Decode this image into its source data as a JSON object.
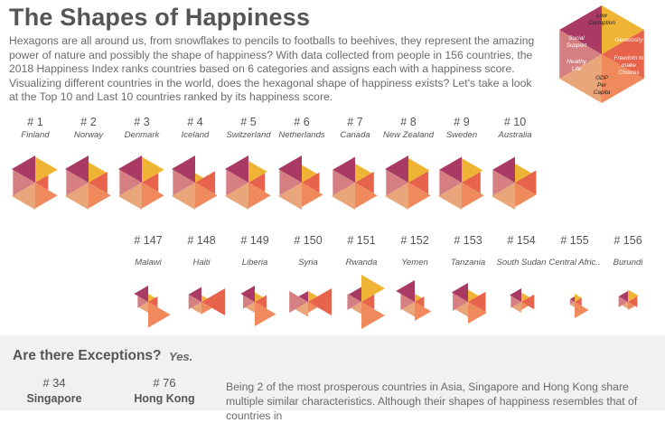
{
  "title": "The Shapes of Happiness",
  "intro": "Hexagons are all around us, from snowflakes to pencils to footballs to beehives, they represent the amazing power of nature and possibly the shape of happiness? With data collected from people in 156 countries, the 2018 Happiness Index ranks countries based on 6 categories and assigns each with a happiness score. Visualizing different countries in the world, does the hexagonal shape of happiness exists? Let's take a look at the Top 10 and Last 10 countries ranked by its happiness score.",
  "legend": {
    "segments": [
      {
        "key": "corruption",
        "label": "Low Corruption",
        "color": "#f0b434"
      },
      {
        "key": "generosity",
        "label": "Generosity",
        "color": "#e7634b"
      },
      {
        "key": "freedom",
        "label": "Freedom to make Choices",
        "color": "#f08a5c"
      },
      {
        "key": "gdp",
        "label": "GDP Per Capita",
        "color": "#e9a67a"
      },
      {
        "key": "health",
        "label": "Healthy Life",
        "color": "#d57f83"
      },
      {
        "key": "social",
        "label": "Social Support",
        "color": "#a93a64"
      }
    ]
  },
  "chart_data": {
    "type": "radial-hexagon",
    "categories": [
      "Low Corruption",
      "Generosity",
      "Freedom to make Choices",
      "GDP Per Capita",
      "Healthy Life",
      "Social Support"
    ],
    "top10": [
      {
        "rank": "# 1",
        "country": "Finland",
        "values": [
          0.95,
          0.55,
          0.95,
          1.0,
          0.95,
          1.0
        ]
      },
      {
        "rank": "# 2",
        "country": "Norway",
        "values": [
          0.75,
          0.8,
          0.95,
          1.0,
          0.95,
          1.0
        ]
      },
      {
        "rank": "# 3",
        "country": "Denmark",
        "values": [
          0.95,
          0.7,
          0.95,
          1.0,
          0.95,
          1.0
        ]
      },
      {
        "rank": "# 4",
        "country": "Iceland",
        "values": [
          0.35,
          0.85,
          0.95,
          1.0,
          0.95,
          1.0
        ]
      },
      {
        "rank": "# 5",
        "country": "Switzerland",
        "values": [
          0.8,
          0.7,
          0.95,
          1.0,
          0.95,
          1.0
        ]
      },
      {
        "rank": "# 6",
        "country": "Netherlands",
        "values": [
          0.65,
          0.75,
          0.9,
          1.0,
          0.95,
          1.0
        ]
      },
      {
        "rank": "# 7",
        "country": "Canada",
        "values": [
          0.7,
          0.8,
          0.95,
          1.0,
          0.95,
          0.95
        ]
      },
      {
        "rank": "# 8",
        "country": "New Zealand",
        "values": [
          0.9,
          0.85,
          0.95,
          1.0,
          0.95,
          1.0
        ]
      },
      {
        "rank": "# 9",
        "country": "Sweden",
        "values": [
          0.9,
          0.8,
          0.95,
          1.0,
          0.95,
          0.95
        ]
      },
      {
        "rank": "# 10",
        "country": "Australia",
        "values": [
          0.7,
          0.9,
          0.9,
          1.0,
          0.95,
          0.95
        ]
      }
    ],
    "last10": [
      {
        "rank": "# 147",
        "country": "Malawi",
        "values": [
          0.3,
          0.4,
          0.95,
          0.4,
          0.45,
          0.6
        ]
      },
      {
        "rank": "# 148",
        "country": "Haiti",
        "values": [
          0.25,
          1.0,
          0.45,
          0.45,
          0.55,
          0.55
        ]
      },
      {
        "rank": "# 149",
        "country": "Liberia",
        "values": [
          0.35,
          0.5,
          0.9,
          0.4,
          0.5,
          0.6
        ]
      },
      {
        "rank": "# 150",
        "country": "Syria",
        "values": [
          0.4,
          1.0,
          0.4,
          0.55,
          0.8,
          0.4
        ]
      },
      {
        "rank": "# 151",
        "country": "Rwanda",
        "values": [
          1.0,
          0.55,
          1.0,
          0.45,
          0.6,
          0.55
        ]
      },
      {
        "rank": "# 152",
        "country": "Yemen",
        "values": [
          0.3,
          0.4,
          0.7,
          0.55,
          0.6,
          0.8
        ]
      },
      {
        "rank": "# 153",
        "country": "Tanzania",
        "values": [
          0.45,
          0.75,
          0.8,
          0.55,
          0.65,
          0.7
        ]
      },
      {
        "rank": "# 154",
        "country": "South Sudan",
        "values": [
          0.35,
          0.55,
          0.3,
          0.4,
          0.45,
          0.5
        ]
      },
      {
        "rank": "# 155",
        "country": "Central Afric..",
        "values": [
          0.3,
          0.3,
          0.6,
          0.2,
          0.2,
          0.2
        ]
      },
      {
        "rank": "# 156",
        "country": "Burundi",
        "values": [
          0.45,
          0.4,
          0.3,
          0.25,
          0.4,
          0.4
        ]
      }
    ]
  },
  "exceptions": {
    "title": "Are there Exceptions?",
    "answer": "Yes.",
    "countries": [
      {
        "rank": "# 34",
        "name": "Singapore"
      },
      {
        "rank": "# 76",
        "name": "Hong Kong"
      }
    ],
    "text": "Being 2 of the most prosperous countries in Asia, Singapore and Hong Kong share multiple similar characteristics. Although their shapes of happiness resembles that of countries in"
  }
}
